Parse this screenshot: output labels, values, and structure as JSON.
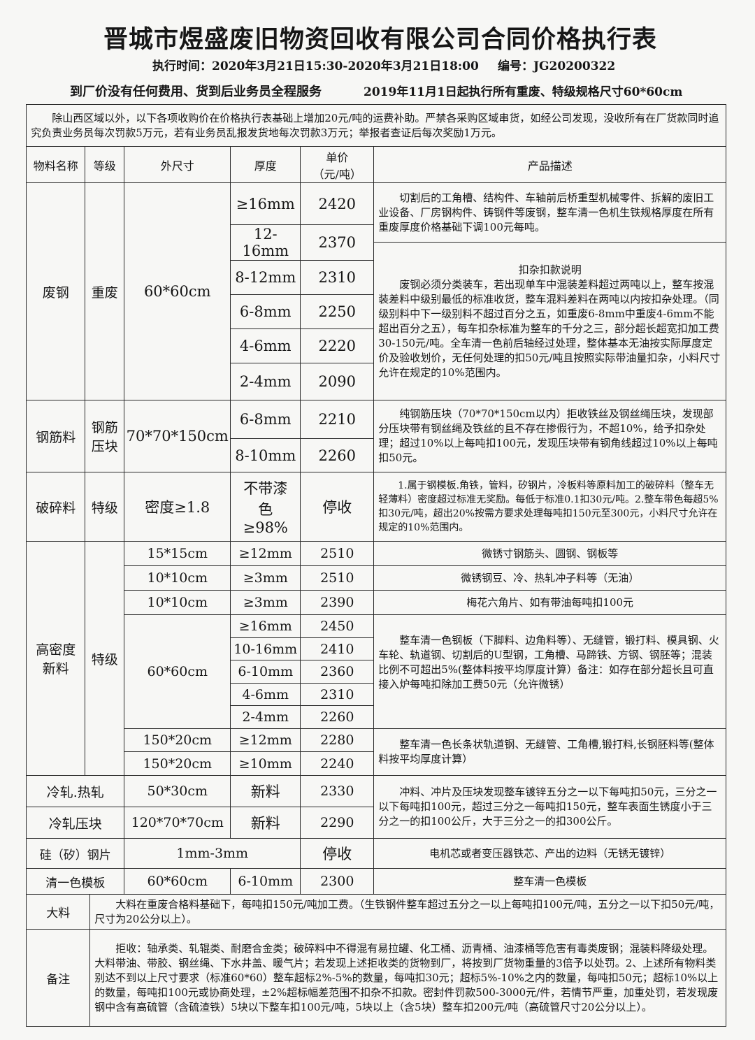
{
  "header": {
    "title": "晋城市煜盛废旧物资回收有限公司合同价格执行表",
    "exec_time": "执行时间：2020年3月21日15:30-2020年3月21日18:00",
    "code": "编号：JG20200322",
    "slogan_left": "到厂价没有任何费用、货到后业务员全程服务",
    "slogan_right": "2019年11月1日起执行所有重废、特级规格尺寸60*60cm"
  },
  "notice": "除山西区域以外，以下各项收购价在价格执行表基础上增加20元/吨的运费补助。严禁各采购区域串货，如经公司发现，没收所有在厂货款同时追究负责业务员每次罚款5万元，若有业务员乱报发货地每次罚款3万元；举报者查证后每次奖励1万元。",
  "columns": [
    "物料名称",
    "等级",
    "外尺寸",
    "厚度",
    "单价",
    "（元/吨）",
    "产品描述"
  ],
  "heavy": {
    "name": "废钢",
    "grade": "重废",
    "size": "60*60cm",
    "rows": [
      {
        "t": "≥16mm",
        "p": "2420"
      },
      {
        "t": "12-16mm",
        "p": "2370"
      },
      {
        "t": "8-12mm",
        "p": "2310"
      },
      {
        "t": "6-8mm",
        "p": "2250"
      },
      {
        "t": "4-6mm",
        "p": "2220"
      },
      {
        "t": "2-4mm",
        "p": "2090"
      }
    ],
    "desc1": "切割后的工角槽、结构件、车轴前后桥重型机械零件、拆解的废旧工业设备、厂房钢构件、铸钢件等废钢，整车清一色机生铁规格厚度在所有重废厚度价格基础下调100元每吨。",
    "desc2_title": "扣杂扣款说明",
    "desc2": "废钢必须分类装车，若出现单车中混装差料超过两吨以上，整车按混装差料中级别最低的标准收货，整车混料差料在两吨以内按扣杂处理。（同级别料中下一级别料不超过百分之五，如重废6-8mm中重废4-6mm不能超出百分之五），每车扣杂标准为整车的千分之三，部分超长超宽扣加工费30-150元/吨。全车清一色前后轴经过处理，整体基本无油按实际厚度定价及验收划价，无任何处理的扣50元/吨且按照实际带油量扣杂，小料尺寸允许在规定的10%范围内。"
  },
  "rebar": {
    "name": "钢筋料",
    "grade": "钢筋压块",
    "size": "70*70*150cm",
    "rows": [
      {
        "t": "6-8mm",
        "p": "2210"
      },
      {
        "t": "8-10mm",
        "p": "2260"
      }
    ],
    "desc": "纯钢筋压块（70*70*150cm以内）拒收铁丝及钢丝绳压块，发现部分压块带有钢丝绳及铁丝的且不存在掺假行为，不超10%，给予扣杂处理；超过10%以上每吨扣100元，发现压块带有钢角线超过10%以上每吨扣50元。"
  },
  "crushed": {
    "name": "破碎料",
    "grade": "特级",
    "size": "密度≥1.8",
    "thickness": "不带漆色≥98%",
    "price": "停收",
    "desc": "1.属于钢模板.角铁，管料，矽钢片，冷板料等原料加工的破碎料（整车无轻薄料）密度超过标准无奖励。每低于标准0.1扣30元/吨。2.整车带色每超5%扣30元/吨，超出20%按需方要求处理每吨扣150元至300元，小料尺寸允许在规定的10%范围内。"
  },
  "hd": {
    "name": "高密度新料",
    "grade": "特级",
    "top": [
      {
        "s": "15*15cm",
        "t": "≥12mm",
        "p": "2510",
        "d": "微锈寸钢筋头、圆钢、钢板等"
      },
      {
        "s": "10*10cm",
        "t": "≥3mm",
        "p": "2510",
        "d": "微锈钢豆、冷、热轧冲子料等（无油）"
      },
      {
        "s": "10*10cm",
        "t": "≥3mm",
        "p": "2390",
        "d": "梅花六角片、如有带油每吨扣100元"
      }
    ],
    "mid_size": "60*60cm",
    "mid": [
      {
        "t": "≥16mm",
        "p": "2450"
      },
      {
        "t": "10-16mm",
        "p": "2410"
      },
      {
        "t": "6-10mm",
        "p": "2360"
      },
      {
        "t": "4-6mm",
        "p": "2310"
      },
      {
        "t": "2-4mm",
        "p": "2260"
      }
    ],
    "mid_desc": "整车清一色钢板（下脚料、边角料等）、无缝管，锻打料、模具钢、火车轮、轨道钢、切割后的U型钢，工角槽、马蹄铁、方钢、钢胚等；混装比例不可超出5%(整体料按平均厚度计算）备注：如存在部分超长且可直接入炉每吨扣除加工费50元（允许微锈）",
    "long": [
      {
        "s": "150*20cm",
        "t": "≥12mm",
        "p": "2280"
      },
      {
        "s": "150*20cm",
        "t": "≥10mm",
        "p": "2240"
      }
    ],
    "long_desc": "整车清一色长条状轨道钢、无缝管、工角槽,锻打料,长钢胚料等(整体料按平均厚度计算）"
  },
  "cold": [
    {
      "name": "冷轧.热轧",
      "s": "50*30cm",
      "t": "新料",
      "p": "2330"
    },
    {
      "name": "冷轧压块",
      "s": "120*70*70cm",
      "t": "新料",
      "p": "2290"
    }
  ],
  "cold_desc": "冲料、冲片及压块发现整车镀锌五分之一以下每吨扣50元，三分之一以下每吨扣100元，超过三分之一每吨扣150元，整车表面生锈度小于三分之一的扣100公斤，大于三分之一的扣300公斤。",
  "silicon": {
    "name": "硅（矽）钢片",
    "s": "1mm-3mm",
    "p": "停收",
    "d": "电机芯或者变压器铁芯、产出的边料（无锈无镀锌）"
  },
  "template": {
    "name": "清一色模板",
    "s": "60*60cm",
    "t": "6-10mm",
    "p": "2300",
    "d": "整车清一色模板"
  },
  "bulk": {
    "name": "大料",
    "d": "大料在重废合格料基础下，每吨扣150元/吨加工费。（生铁钢件整车超过五分之一以上每吨扣100元/吨，五分之一以下扣50元/吨，尺寸为20公分以上）。"
  },
  "remarks": {
    "name": "备注",
    "d": "拒收：轴承类、轧辊类、耐磨合金类；破碎料中不得混有易拉罐、化工桶、沥青桶、油漆桶等危害有毒类废钢；混装料降级处理。大料带油、带胶、钢丝绳、下水井盖、暖气片；若发现上述拒收类的货物到厂，将按到厂货物重量的3倍予以处罚。2、上述所有物料类别达不到以上尺寸要求（标准60*60）整车超标2%-5%的数量，每吨扣30元；超标5%-10%之内的数量，每吨扣50元；超标10%以上的数量，每吨扣100元或协商处理，±2%超标幅差范围不扣杂不扣款。密封件罚款500-3000元/件，若情节严重，加重处罚，若发现废钢中含有高硫管（含硫渣铁）5块以下整车扣100元/吨，5块以上（含5块）整车扣200元/吨（高硫管尺寸20公分以上）。"
  }
}
